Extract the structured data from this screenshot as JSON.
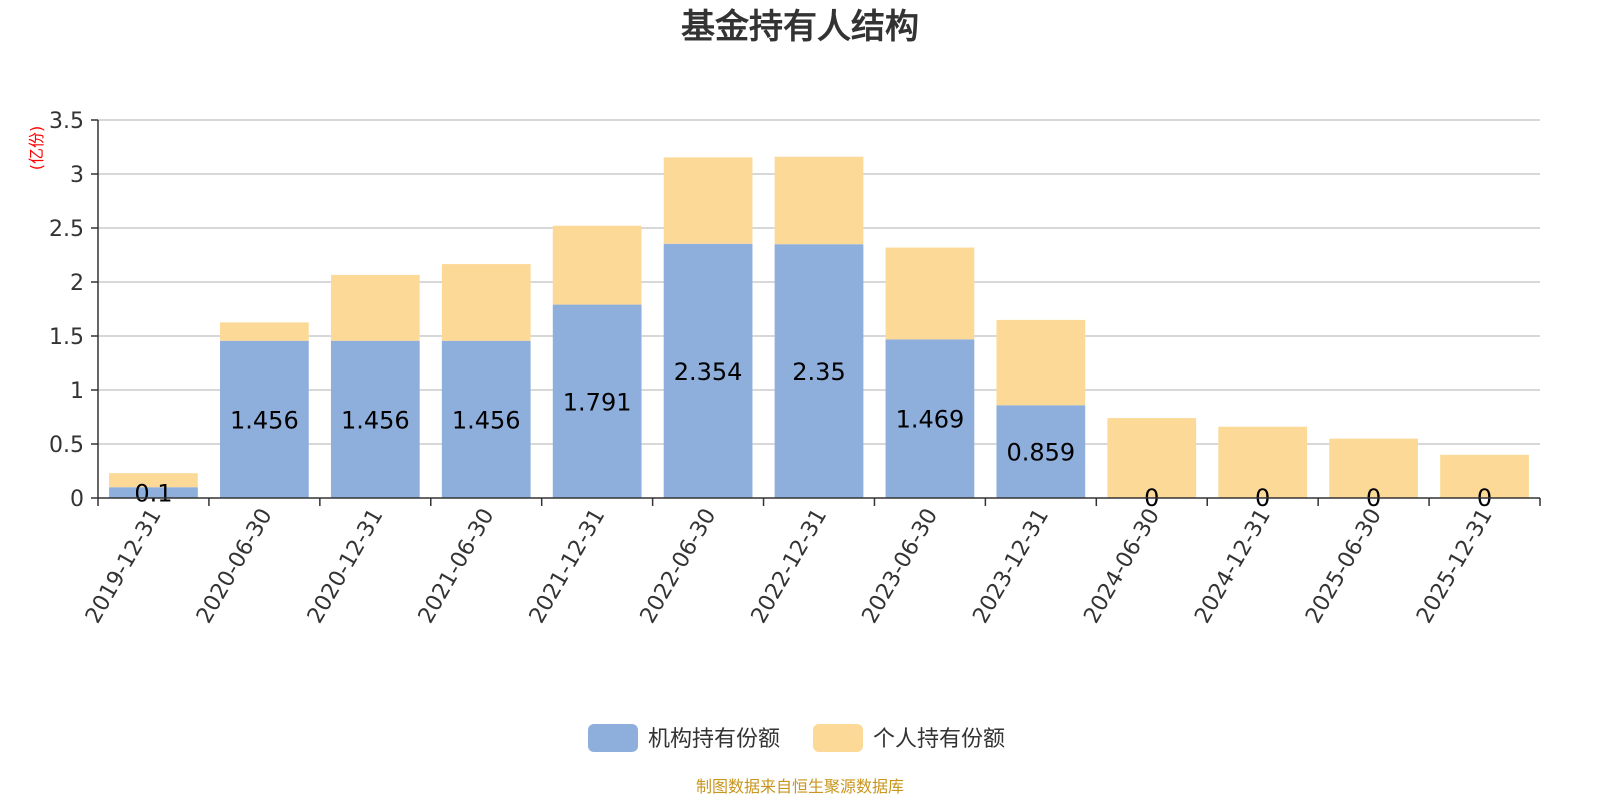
{
  "title": "基金持有人结构",
  "unit_label": "(亿份)",
  "footer": "制图数据来自恒生聚源数据库",
  "colors": {
    "institution": "#8eaedb",
    "individual": "#fdd998",
    "grid": "#cccccc",
    "axis": "#333333"
  },
  "chart_data": {
    "type": "bar",
    "stacked": true,
    "categories": [
      "2019-12-31",
      "2020-06-30",
      "2020-12-31",
      "2021-06-30",
      "2021-12-31",
      "2022-06-30",
      "2022-12-31",
      "2023-06-30",
      "2023-12-31",
      "2024-06-30",
      "2024-12-31",
      "2025-06-30",
      "2025-12-31"
    ],
    "series": [
      {
        "name": "机构持有份额",
        "values": [
          0.1,
          1.456,
          1.456,
          1.456,
          1.791,
          2.354,
          2.35,
          1.469,
          0.859,
          0,
          0,
          0,
          0
        ],
        "labels": [
          "0.1",
          "1.456",
          "1.456",
          "1.456",
          "1.791",
          "2.354",
          "2.35",
          "1.469",
          "0.859",
          "0",
          "0",
          "0",
          "0"
        ]
      },
      {
        "name": "个人持有份额",
        "values": [
          0.13,
          0.17,
          0.61,
          0.71,
          0.73,
          0.8,
          0.81,
          0.85,
          0.79,
          0.74,
          0.66,
          0.55,
          0.4
        ]
      }
    ],
    "yticks": [
      "0",
      "0.5",
      "1",
      "1.5",
      "2",
      "2.5",
      "3",
      "3.5"
    ],
    "ylim": [
      0,
      3.5
    ],
    "grid": true,
    "legend_position": "bottom-center"
  }
}
